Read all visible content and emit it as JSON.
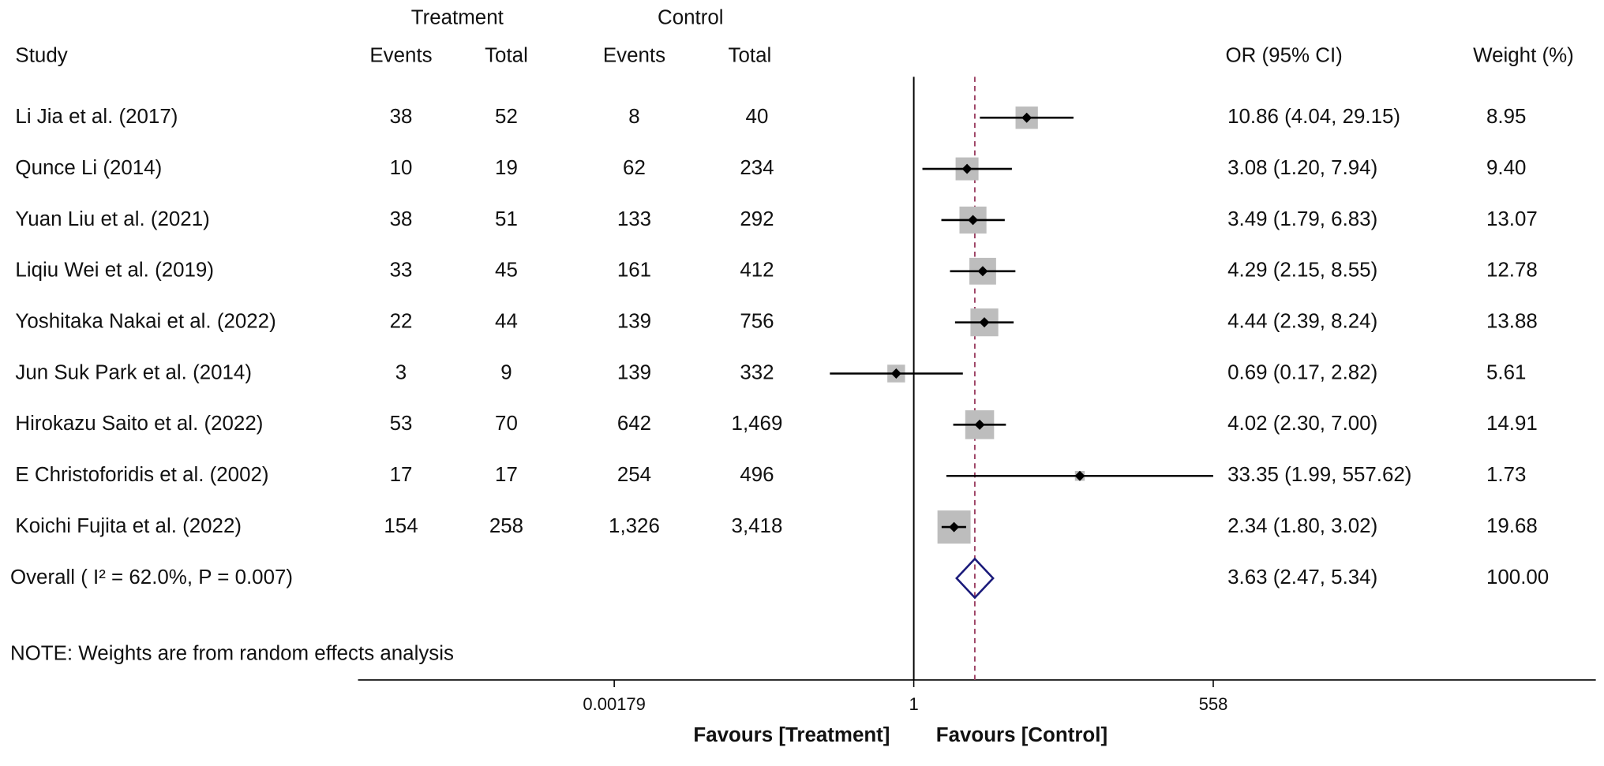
{
  "chart_data": {
    "type": "forest",
    "xscale": "log",
    "xlim": [
      8e-06,
      1800000
    ],
    "xticks": [
      0.00179,
      1,
      558
    ],
    "headers": {
      "treatment": "Treatment",
      "control": "Control",
      "study": "Study",
      "treatment_events": "Events",
      "treatment_total": "Total",
      "control_events": "Events",
      "control_total": "Total",
      "or": "OR (95% CI)",
      "weight": "Weight (%)"
    },
    "categories": [
      "Li Jia et al. (2017)",
      "Qunce Li (2014)",
      "Yuan Liu et al. (2021)",
      "Liqiu Wei et al. (2019)",
      "Yoshitaka Nakai et al. (2022)",
      "Jun Suk Park et al. (2014)",
      "Hirokazu Saito et al. (2022)",
      "E Christoforidis et al. (2002)",
      "Koichi Fujita et al. (2022)"
    ],
    "treatment_events": [
      38,
      10,
      38,
      33,
      22,
      3,
      53,
      17,
      154
    ],
    "treatment_total": [
      52,
      19,
      51,
      45,
      44,
      9,
      70,
      17,
      258
    ],
    "control_events": [
      8,
      62,
      133,
      161,
      139,
      139,
      642,
      254,
      {
        "value": 1326,
        "label": "1,326"
      }
    ],
    "control_total": [
      40,
      234,
      292,
      412,
      756,
      332,
      {
        "value": 1469,
        "label": "1,469"
      },
      496,
      {
        "value": 3418,
        "label": "3,418"
      }
    ],
    "values": [
      10.86,
      3.08,
      3.49,
      4.29,
      4.44,
      0.69,
      4.02,
      33.35,
      2.34
    ],
    "lower": [
      4.04,
      1.2,
      1.79,
      2.15,
      2.39,
      0.17,
      2.3,
      1.99,
      1.8
    ],
    "upper": [
      29.15,
      7.94,
      6.83,
      8.55,
      8.24,
      2.82,
      7.0,
      557.62,
      3.02
    ],
    "value_labels": [
      "10.86 (4.04, 29.15)",
      "3.08 (1.20, 7.94)",
      "3.49 (1.79, 6.83)",
      "4.29 (2.15, 8.55)",
      "4.44 (2.39, 8.24)",
      "0.69 (0.17, 2.82)",
      "4.02 (2.30, 7.00)",
      "33.35 (1.99, 557.62)",
      "2.34 (1.80, 3.02)"
    ],
    "weights": [
      8.95,
      9.4,
      13.07,
      12.78,
      13.88,
      5.61,
      14.91,
      1.73,
      19.68
    ],
    "weight_labels": [
      "8.95",
      "9.40",
      "13.07",
      "12.78",
      "13.88",
      "5.61",
      "14.91",
      "1.73",
      "19.68"
    ],
    "overall": {
      "label": "Overall (  I² = 62.0%, P = 0.007)",
      "value": 3.63,
      "lower": 2.47,
      "upper": 5.34,
      "value_label": "3.63 (2.47, 5.34)",
      "weight": {
        "value": 100,
        "label": "100.00"
      }
    },
    "note": "NOTE: Weights are from random effects analysis",
    "xlabel_left": "Favours [Treatment]",
    "xlabel_right": "Favours [Control]"
  }
}
